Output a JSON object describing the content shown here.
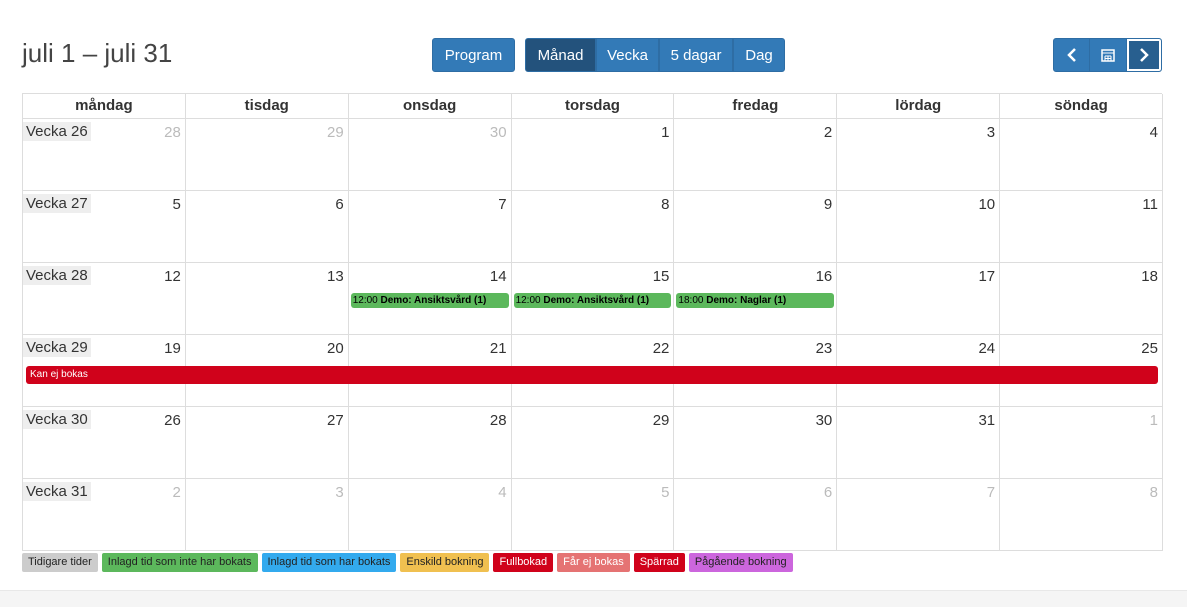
{
  "header": {
    "title": "juli 1 – juli 31",
    "program_button": "Program",
    "views": [
      "Månad",
      "Vecka",
      "5 dagar",
      "Dag"
    ]
  },
  "weekdays": [
    "måndag",
    "tisdag",
    "onsdag",
    "torsdag",
    "fredag",
    "lördag",
    "söndag"
  ],
  "weeks": [
    {
      "label": "Vecka 26",
      "days": [
        {
          "date": 28
        },
        {
          "date": 29
        },
        {
          "date": 30
        },
        {
          "date": 1
        },
        {
          "date": 2
        },
        {
          "date": 3
        },
        {
          "date": 4
        }
      ]
    },
    {
      "label": "Vecka 27",
      "days": [
        {
          "date": 5
        },
        {
          "date": 6
        },
        {
          "date": 7
        },
        {
          "date": 8
        },
        {
          "date": 9
        },
        {
          "date": 10
        },
        {
          "date": 11
        }
      ]
    },
    {
      "label": "Vecka 28",
      "days": [
        {
          "date": 12
        },
        {
          "date": 13
        },
        {
          "date": 14,
          "events": [
            {
              "time": "12:00",
              "title": "Demo: Ansiktsvård (1)"
            }
          ]
        },
        {
          "date": 15,
          "events": [
            {
              "time": "12:00",
              "title": "Demo: Ansiktsvård (1)"
            }
          ]
        },
        {
          "date": 16,
          "events": [
            {
              "time": "18:00",
              "title": "Demo: Naglar (1)"
            }
          ]
        },
        {
          "date": 17
        },
        {
          "date": 18
        }
      ]
    },
    {
      "label": "Vecka 29",
      "days": [
        {
          "date": 19
        },
        {
          "date": 20
        },
        {
          "date": 21
        },
        {
          "date": 22
        },
        {
          "date": 23
        },
        {
          "date": 24
        },
        {
          "date": 25
        }
      ],
      "banner": "Kan ej bokas"
    },
    {
      "label": "Vecka 30",
      "days": [
        {
          "date": 26
        },
        {
          "date": 27
        },
        {
          "date": 28
        },
        {
          "date": 29
        },
        {
          "date": 30
        },
        {
          "date": 31
        },
        {
          "date": 1
        }
      ]
    },
    {
      "label": "Vecka 31",
      "days": [
        {
          "date": 2
        },
        {
          "date": 3
        },
        {
          "date": 4
        },
        {
          "date": 5
        },
        {
          "date": 6
        },
        {
          "date": 7
        },
        {
          "date": 8
        }
      ]
    }
  ],
  "legend": [
    {
      "label": "Tidigare tider",
      "color": "#cccccc"
    },
    {
      "label": "Inlagd tid som inte har bokats",
      "color": "#5cb85c"
    },
    {
      "label": "Inlagd tid som har bokats",
      "color": "#33aaee"
    },
    {
      "label": "Enskild bokning",
      "color": "#f0c050"
    },
    {
      "label": "Fullbokad",
      "color": "#d0021b"
    },
    {
      "label": "Får ej bokas",
      "color": "#e57373"
    },
    {
      "label": "Spärrad",
      "color": "#d0021b"
    },
    {
      "label": "Pågående bokning",
      "color": "#cc66dd"
    }
  ]
}
